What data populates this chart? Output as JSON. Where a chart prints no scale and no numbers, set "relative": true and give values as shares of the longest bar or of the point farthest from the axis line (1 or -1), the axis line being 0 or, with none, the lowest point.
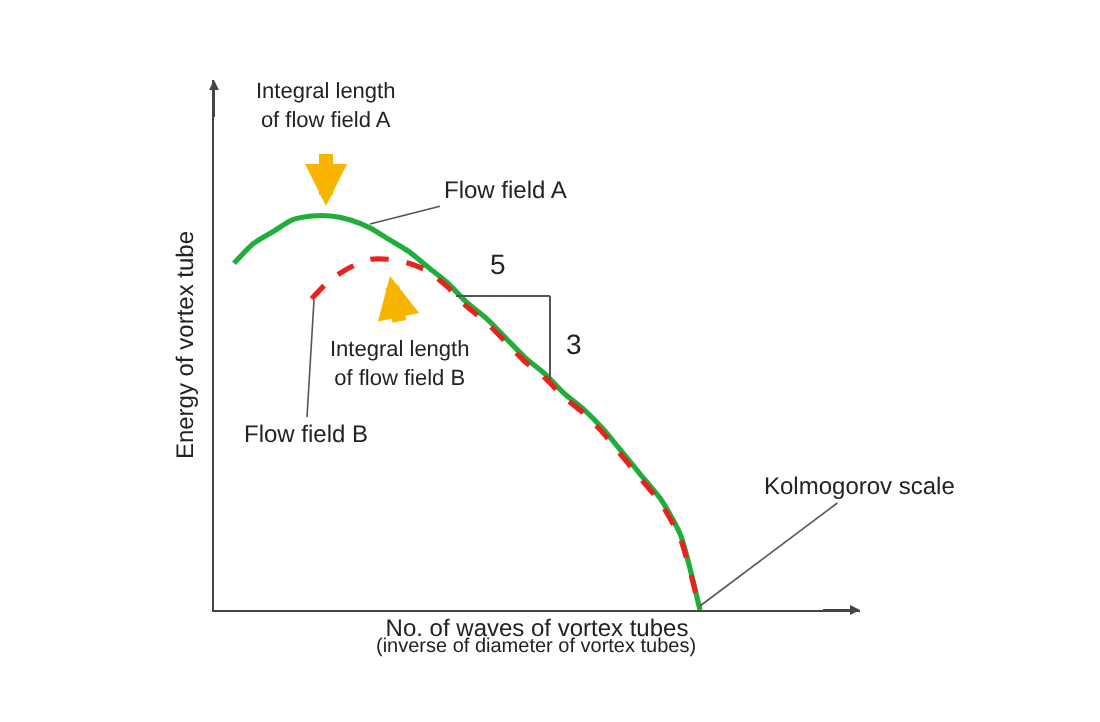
{
  "chart_data": {
    "type": "line",
    "relative": true,
    "legend": false,
    "xlabel": "No. of waves of vortex tubes",
    "ylabel": "Energy of vortex tube",
    "categories": [
      null,
      null,
      null,
      null,
      null,
      null,
      null,
      null,
      null,
      null,
      null,
      null,
      null,
      null,
      null,
      null,
      null,
      null,
      null,
      null,
      null,
      null,
      null,
      null,
      null
    ],
    "series": [
      {
        "name": "Flow field A",
        "color": "#1fae3c",
        "line_style": "solid",
        "values": [
          0.88,
          0.93,
          0.96,
          0.99,
          1,
          1,
          0.99,
          0.97,
          0.94,
          0.91,
          0.87,
          0.83,
          0.78,
          0.74,
          0.69,
          0.64,
          0.6,
          0.55,
          0.51,
          0.46,
          0.4,
          0.34,
          0.28,
          0.19,
          0
        ]
      },
      {
        "name": "Flow field B",
        "color": "#e8231e",
        "line_style": "dashed",
        "values": [
          null,
          null,
          null,
          null,
          0.79,
          0.84,
          0.87,
          0.89,
          0.89,
          0.88,
          0.86,
          0.82,
          0.77,
          0.73,
          0.68,
          0.63,
          0.59,
          0.54,
          0.5,
          0.45,
          0.39,
          0.33,
          0.27,
          0.18,
          0
        ]
      }
    ],
    "annotations": [
      "Integral length\nof flow field A",
      "Integral length\nof flow field B",
      "Kolmogorov scale",
      "5",
      "3",
      "(inverse of diameter of vortex tubes)"
    ]
  }
}
